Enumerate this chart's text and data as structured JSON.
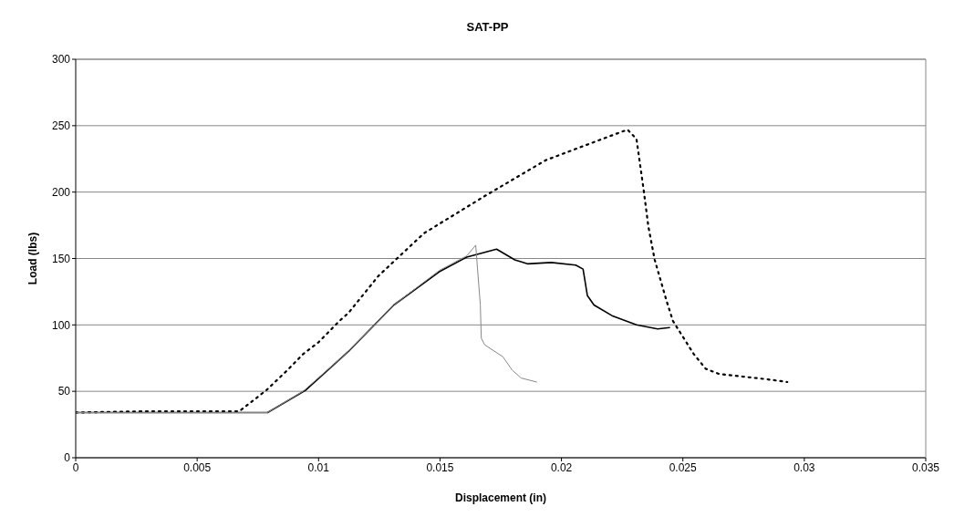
{
  "chart_data": {
    "type": "line",
    "title": "SAT-PP",
    "xlabel": "Displacement (in)",
    "ylabel": "Load (lbs)",
    "xlim": [
      0,
      0.035
    ],
    "xticks": [
      0,
      0.005,
      0.01,
      0.015,
      0.02,
      0.025,
      0.03,
      0.035
    ],
    "ylim": [
      0,
      300
    ],
    "yticks": [
      0,
      50,
      100,
      150,
      200,
      250,
      300
    ],
    "grid": "y",
    "series": [
      {
        "color": "#000000",
        "line_style": "dotted",
        "x": [
          0,
          0.003,
          0.00674,
          0.00786,
          0.00872,
          0.00936,
          0.01,
          0.01086,
          0.01123,
          0.01247,
          0.01434,
          0.01684,
          0.01935,
          0.02183,
          0.02272,
          0.02309,
          0.02339,
          0.02358,
          0.02384,
          0.02433,
          0.02459,
          0.02545,
          0.02594,
          0.0265,
          0.0275,
          0.0285,
          0.0293
        ],
        "values": [
          34,
          35,
          35,
          51,
          66,
          78,
          87,
          103,
          109,
          137,
          169,
          197,
          224,
          241,
          247,
          240,
          201,
          174,
          149,
          118,
          103,
          78,
          67,
          63,
          61,
          59,
          57
        ]
      },
      {
        "color": "#000000",
        "line_style": "solid",
        "x": [
          0,
          0.0079,
          0.00948,
          0.01123,
          0.0131,
          0.01497,
          0.0161,
          0.01733,
          0.01808,
          0.0186,
          0.01958,
          0.02059,
          0.02089,
          0.02107,
          0.02134,
          0.02208,
          0.02309,
          0.02396,
          0.02445
        ],
        "values": [
          34,
          34,
          51,
          80,
          115,
          140,
          151,
          157,
          149,
          146,
          147,
          145,
          142,
          122,
          115,
          107,
          100,
          97,
          98
        ]
      },
      {
        "color": "#888888",
        "line_style": "solid",
        "x": [
          0,
          0.0079,
          0.00936,
          0.01123,
          0.0131,
          0.01497,
          0.0161,
          0.01647,
          0.01666,
          0.0167,
          0.01684,
          0.01759,
          0.01797,
          0.01834,
          0.01898
        ],
        "values": [
          34,
          34,
          50,
          80,
          115,
          141,
          152,
          160,
          115,
          90,
          85,
          76,
          66,
          60,
          57
        ]
      }
    ]
  }
}
